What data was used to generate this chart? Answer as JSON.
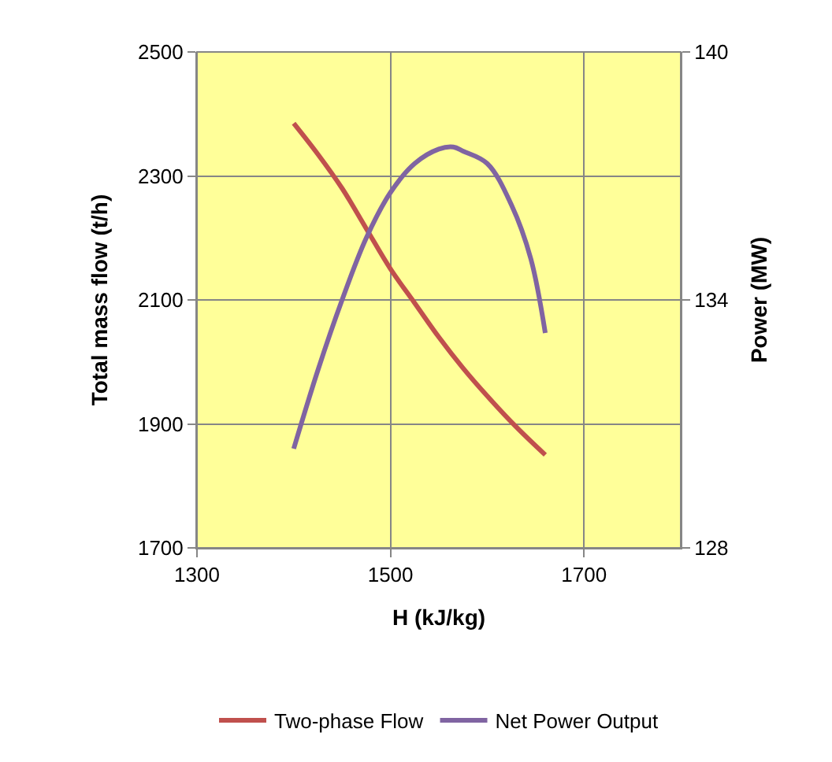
{
  "chart_data": {
    "type": "line",
    "xlabel": "H (kJ/kg)",
    "ylabel": "Total mass flow (t/h)",
    "y2label": "Power (MW)",
    "xlim": [
      1300,
      1800
    ],
    "xticks": [
      1300,
      1500,
      1700
    ],
    "ylim": [
      1700,
      2500
    ],
    "yticks": [
      1700,
      1900,
      2100,
      2300,
      2500
    ],
    "y2lim": [
      128,
      140
    ],
    "y2ticks": [
      128,
      134,
      140
    ],
    "grid": true,
    "legend": "bottom",
    "marker": "none",
    "line_style": "solid",
    "series": [
      {
        "name": "Two-phase Flow",
        "color": "#c0504d",
        "x": [
          1400,
          1425,
          1450,
          1475,
          1500,
          1525,
          1550,
          1575,
          1600,
          1630,
          1660
        ],
        "values": [
          2385,
          2335,
          2280,
          2215,
          2150,
          2095,
          2040,
          1990,
          1945,
          1895,
          1850
        ]
      },
      {
        "name": "Net Power Output",
        "color": "#8064a2",
        "axis": "y2",
        "x": [
          1400,
          1425,
          1450,
          1475,
          1500,
          1525,
          1550,
          1565,
          1575,
          1600,
          1625,
          1645,
          1660
        ],
        "values": [
          130.4,
          132.3,
          134.0,
          135.5,
          136.6,
          137.3,
          137.65,
          137.7,
          137.6,
          137.3,
          136.3,
          135.0,
          133.2
        ]
      }
    ]
  }
}
